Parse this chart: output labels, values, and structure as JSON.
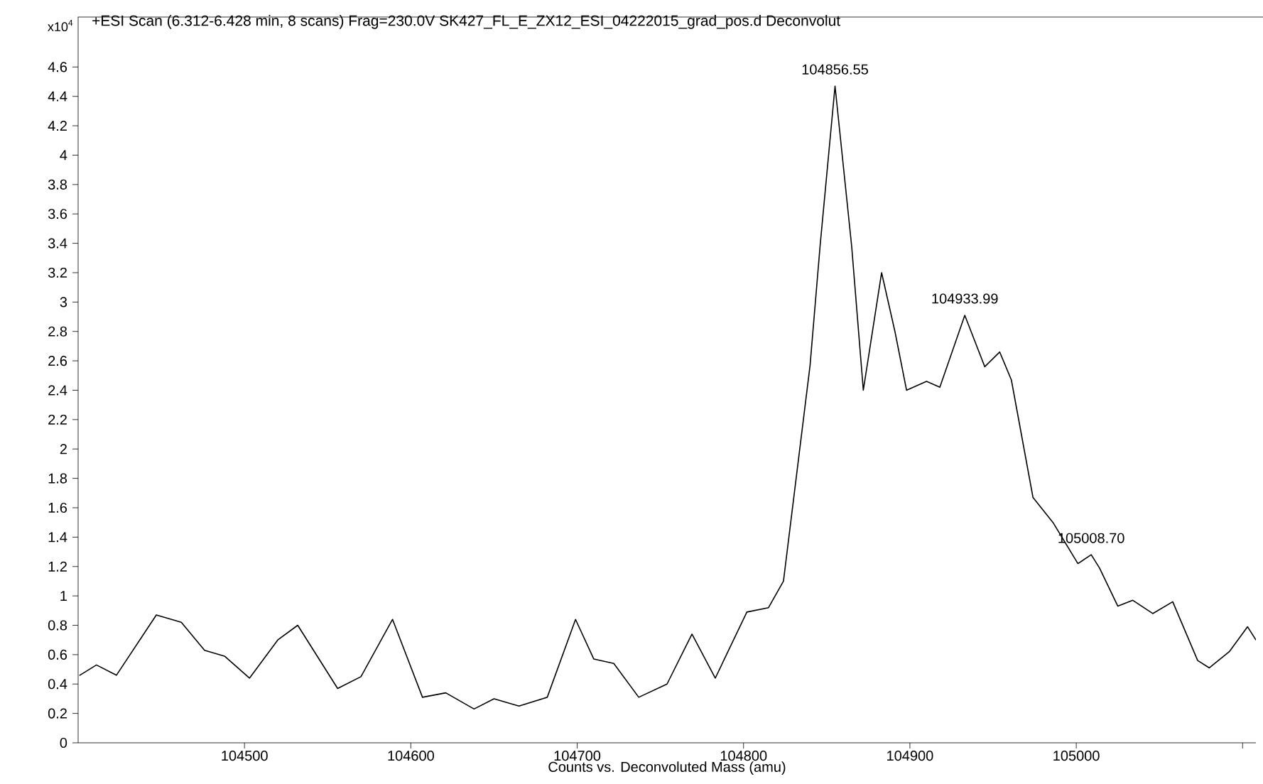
{
  "chart_data": {
    "type": "line",
    "title": "+ESI Scan (6.312-6.428 min, 8 scans) Frag=230.0V SK427_FL_E_ZX12_ESI_04222015_grad_pos.d  Deconvolut",
    "xlabel": "Counts vs. Deconvoluted Mass (amu)",
    "annotations": [
      "x10$^{4}$",
      {
        "text": "104856.55",
        "x": 104855,
        "y": 4.47
      },
      {
        "text": "104933.99",
        "x": 104933,
        "y": 2.91
      },
      {
        "text": "105008.70",
        "x": 105009,
        "y": 1.28
      }
    ],
    "series": [
      {
        "color": "#000000",
        "x": [
          104401,
          104411,
          104423,
          104447,
          104462,
          104476,
          104488,
          104503,
          104520,
          104532,
          104556,
          104570,
          104589,
          104607,
          104621,
          104638,
          104650,
          104665,
          104682,
          104699,
          104710,
          104722,
          104737,
          104754,
          104769,
          104783,
          104802,
          104815,
          104824,
          104840,
          104846,
          104855,
          104865,
          104872,
          104883,
          104891,
          104898,
          104910,
          104918,
          104933,
          104945,
          104954,
          104961,
          104974,
          104986,
          105001,
          105009,
          105014,
          105025,
          105034,
          105046,
          105058,
          105073,
          105080,
          105092,
          105103,
          105108
        ],
        "values": [
          0.46,
          0.53,
          0.46,
          0.87,
          0.82,
          0.63,
          0.59,
          0.44,
          0.7,
          0.8,
          0.37,
          0.45,
          0.84,
          0.31,
          0.34,
          0.23,
          0.3,
          0.25,
          0.31,
          0.84,
          0.57,
          0.54,
          0.31,
          0.4,
          0.74,
          0.44,
          0.89,
          0.92,
          1.1,
          2.57,
          3.38,
          4.47,
          3.38,
          2.4,
          3.2,
          2.8,
          2.4,
          2.46,
          2.42,
          2.91,
          2.56,
          2.66,
          2.47,
          1.67,
          1.5,
          1.22,
          1.28,
          1.19,
          0.93,
          0.97,
          0.88,
          0.96,
          0.56,
          0.51,
          0.62,
          0.79,
          0.7
        ]
      }
    ],
    "xlim": [
      104400,
      105108
    ],
    "xticks": [
      104500,
      104600,
      104700,
      104800,
      104900,
      105000,
      {
        "value": 105100,
        "label": null
      }
    ],
    "ylim": [
      0,
      4.94
    ],
    "yticks": [
      0,
      0.2,
      0.4,
      0.6,
      0.8,
      1,
      1.2,
      1.4,
      1.6,
      1.8,
      2,
      2.2,
      2.4,
      2.6,
      2.8,
      3,
      3.2,
      3.4,
      3.6,
      3.8,
      4,
      4.2,
      4.4,
      4.6
    ],
    "marker": "none",
    "line_style": "solid"
  }
}
